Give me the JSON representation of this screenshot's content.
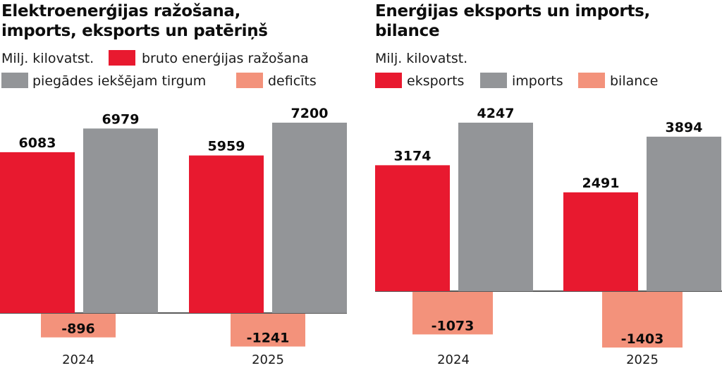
{
  "colors": {
    "red": "#e8192f",
    "gray": "#939598",
    "salmon": "#f3927b",
    "baseline": "#222222"
  },
  "chart_data": [
    {
      "type": "bar",
      "title_line1": "Elektroenerģijas ražošana,",
      "title_line2": "imports, eksports un patēriņš",
      "unit": "Milj. kilovatst.",
      "categories": [
        "2024",
        "2025"
      ],
      "series": [
        {
          "name": "bruto enerģijas ražošana",
          "color_key": "red",
          "values": [
            6083,
            5959
          ]
        },
        {
          "name": "piegādes iekšējam tirgum",
          "color_key": "gray",
          "values": [
            6979,
            7200
          ]
        },
        {
          "name": "deficīts",
          "color_key": "salmon",
          "values": [
            -896,
            -1241
          ]
        }
      ],
      "legend": [
        {
          "label": "bruto enerģijas ražošana",
          "color_key": "red"
        },
        {
          "label": "piegādes iekšējam tirgum",
          "color_key": "gray"
        },
        {
          "label": "deficīts",
          "color_key": "salmon"
        }
      ],
      "xlabel": "",
      "ylabel": "Milj. kilovatst.",
      "ylim": [
        -1241,
        7200
      ],
      "grid": false,
      "legend_placement": "top"
    },
    {
      "type": "bar",
      "title_line1": "Enerģijas eksports un imports,",
      "title_line2": "bilance",
      "unit": "Milj. kilovatst.",
      "categories": [
        "2024",
        "2025"
      ],
      "series": [
        {
          "name": "eksports",
          "color_key": "red",
          "values": [
            3174,
            2491
          ]
        },
        {
          "name": "imports",
          "color_key": "gray",
          "values": [
            4247,
            3894
          ]
        },
        {
          "name": "bilance",
          "color_key": "salmon",
          "values": [
            -1073,
            -1403
          ]
        }
      ],
      "legend": [
        {
          "label": "eksports",
          "color_key": "red"
        },
        {
          "label": "imports",
          "color_key": "gray"
        },
        {
          "label": "bilance",
          "color_key": "salmon"
        }
      ],
      "xlabel": "",
      "ylabel": "Milj. kilovatst.",
      "ylim": [
        -1403,
        4247
      ],
      "grid": false,
      "legend_placement": "top"
    }
  ]
}
